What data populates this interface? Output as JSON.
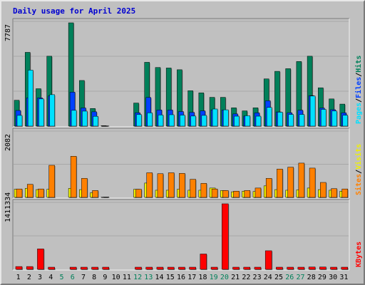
{
  "chart_data": {
    "type": "bar",
    "title": "Daily usage for April 2025",
    "colors": {
      "title": "#0000d0",
      "hits": "#00805a",
      "files": "#0040ff",
      "pages": "#00e0ff",
      "visits": "#f0f000",
      "sites": "#ff8000",
      "kbytes": "#ff0000",
      "weekend_label": "#00805a",
      "slash": "#000000"
    },
    "categories": [
      "1",
      "2",
      "3",
      "4",
      "5",
      "6",
      "7",
      "8",
      "9",
      "10",
      "11",
      "12",
      "13",
      "14",
      "15",
      "16",
      "17",
      "18",
      "19",
      "20",
      "21",
      "22",
      "23",
      "24",
      "25",
      "26",
      "27",
      "28",
      "29",
      "30",
      "31"
    ],
    "weekend_days": [
      "5",
      "6",
      "12",
      "13",
      "19",
      "20",
      "26",
      "27"
    ],
    "panels": [
      {
        "name": "hits-files-pages",
        "ymax_label": "7787",
        "ylim": [
          0,
          7787
        ],
        "legend": [
          "Pages",
          "/",
          "Files",
          "/",
          "Hits"
        ],
        "series": [
          {
            "name": "Hits",
            "values": [
              1950,
              5560,
              2820,
              5270,
              0,
              7787,
              3440,
              1330,
              30,
              0,
              0,
              1740,
              4810,
              4420,
              4380,
              4250,
              2670,
              2510,
              2170,
              2170,
              1380,
              1150,
              1380,
              3560,
              4130,
              4330,
              4870,
              5270,
              2890,
              2050,
              1660
            ]
          },
          {
            "name": "Files",
            "values": [
              1180,
              2130,
              2130,
              2280,
              0,
              2560,
              1370,
              1080,
              20,
              0,
              0,
              1010,
              2160,
              1220,
              1220,
              1100,
              1040,
              1150,
              1220,
              1220,
              920,
              760,
              1000,
              1910,
              1070,
              1010,
              1200,
              2300,
              1360,
              1240,
              1000
            ]
          },
          {
            "name": "Pages",
            "values": [
              810,
              4220,
              2050,
              2370,
              0,
              1190,
              1130,
              740,
              10,
              0,
              0,
              870,
              1000,
              840,
              860,
              830,
              760,
              810,
              1290,
              1230,
              750,
              780,
              750,
              1410,
              1050,
              880,
              880,
              2270,
              1260,
              1140,
              820
            ]
          }
        ]
      },
      {
        "name": "sites-visits",
        "ymax_label": "2082",
        "ylim": [
          0,
          2082
        ],
        "legend": [
          "Sites",
          "/",
          "Visits"
        ],
        "series": [
          {
            "name": "Sites",
            "values": [
              270,
              420,
              270,
              1030,
              0,
              1320,
              610,
              220,
              10,
              0,
              0,
              260,
              790,
              760,
              790,
              770,
              580,
              450,
              270,
              220,
              200,
              220,
              300,
              610,
              910,
              970,
              1100,
              940,
              480,
              280,
              270
            ]
          },
          {
            "name": "Visits",
            "values": [
              260,
              290,
              250,
              260,
              0,
              290,
              250,
              150,
              5,
              0,
              0,
              260,
              460,
              230,
              230,
              260,
              230,
              230,
              300,
              220,
              180,
              200,
              190,
              370,
              250,
              230,
              240,
              300,
              250,
              230,
              200
            ]
          }
        ]
      },
      {
        "name": "kbytes",
        "ymax_label": "1411334",
        "ylim": [
          0,
          1411334
        ],
        "legend": [
          "KBytes"
        ],
        "series": [
          {
            "name": "KBytes",
            "values": [
              60000,
              60000,
              440000,
              30000,
              0,
              30000,
              25000,
              20000,
              15000,
              0,
              0,
              30000,
              30000,
              30000,
              30000,
              30000,
              30000,
              330000,
              30000,
              1411334,
              30000,
              20000,
              20000,
              400000,
              30000,
              20000,
              30000,
              50000,
              50000,
              30000,
              30000
            ]
          }
        ]
      }
    ]
  }
}
